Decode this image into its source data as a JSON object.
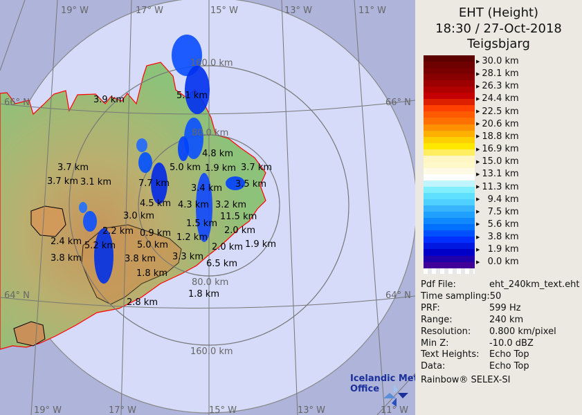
{
  "header": {
    "product": "EHT (Height)",
    "datetime": "18:30 / 27-Oct-2018",
    "site": "Teigsbjarg"
  },
  "legend": {
    "labels": [
      "30.0 km",
      "28.1 km",
      "26.3 km",
      "24.4 km",
      "22.5 km",
      "20.6 km",
      "18.8 km",
      "16.9 km",
      "15.0 km",
      "13.1 km",
      "11.3 km",
      "  9.4 km",
      "  7.5 km",
      "  5.6 km",
      "  3.8 km",
      "  1.9 km",
      "  0.0 km"
    ],
    "colors": [
      "#5c0000",
      "#6e0000",
      "#780000",
      "#880000",
      "#9c0000",
      "#b00000",
      "#c40000",
      "#dc2000",
      "#ff4000",
      "#ff5a00",
      "#ff7000",
      "#ff9000",
      "#ffb000",
      "#ffd000",
      "#ffe800",
      "#ffee60",
      "#fff6c4",
      "#fff8c8",
      "#fffae6",
      "#ffffff",
      "#c0f4ff",
      "#80f0ff",
      "#60e0ff",
      "#50d0ff",
      "#38b4ff",
      "#20a0ff",
      "#1088ff",
      "#0070ff",
      "#0050ff",
      "#0030ff",
      "#0018e0",
      "#0000c8",
      "#2000a8",
      "#400098"
    ]
  },
  "info": [
    {
      "label": "Pdf File:",
      "value": "eht_240km_text.eht"
    },
    {
      "label": "Time sampling:",
      "value": "50"
    },
    {
      "label": "PRF:",
      "value": "599 Hz"
    },
    {
      "label": "Range:",
      "value": "240 km"
    },
    {
      "label": "Resolution:",
      "value": "0.800 km/pixel"
    },
    {
      "label": "Min Z:",
      "value": "-10.0 dBZ"
    },
    {
      "label": "Text Heights:",
      "value": "Echo Top"
    },
    {
      "label": "Data:",
      "value": "Echo Top"
    }
  ],
  "credit": "Rainbow® SELEX-SI",
  "map": {
    "logo_text": [
      "Icelandic Met",
      "Office"
    ],
    "lon_labels_top": [
      "19° W",
      "17° W",
      "15° W",
      "13° W",
      "11° W"
    ],
    "lon_labels_bottom": [
      "19° W",
      "17° W",
      "15° W",
      "13° W",
      "11° W"
    ],
    "lat_labels": [
      "66° N",
      "66° N",
      "64° N",
      "64° N"
    ],
    "ring_labels": [
      "160.0 km",
      "80.0 km",
      "80.0 km",
      "160.0 km"
    ],
    "heights": [
      "3.9 km",
      "5.1 km",
      "4.8 km",
      "1.9 km",
      "3.4 km",
      "3.7 km",
      "3.5 km",
      "5.0 km",
      "4.3 km",
      "3.2 km",
      "11.5 km",
      "7.7 km",
      "4.5 km",
      "1.5 km",
      "2.0 km",
      "3.0 km",
      "1.2 km",
      "2.0 km",
      "3.3 km",
      "0.9 km",
      "5.0 km",
      "3.7 km",
      "3.1 km",
      "3.7 km",
      "2.4 km",
      "3.8 km",
      "5.2 km",
      "2.2 km",
      "3.8 km",
      "1.8 km",
      "6.5 km",
      "1.9 km",
      "1.8 km",
      "2.8 km"
    ],
    "colors": {
      "outside": "#aeb4da",
      "disc": "#d5dbf8",
      "coast": "#ff0000",
      "land": "#8fbf78",
      "highland": "#c99a58",
      "echo": "#0040ff",
      "logo": "#1a2f9a"
    }
  }
}
